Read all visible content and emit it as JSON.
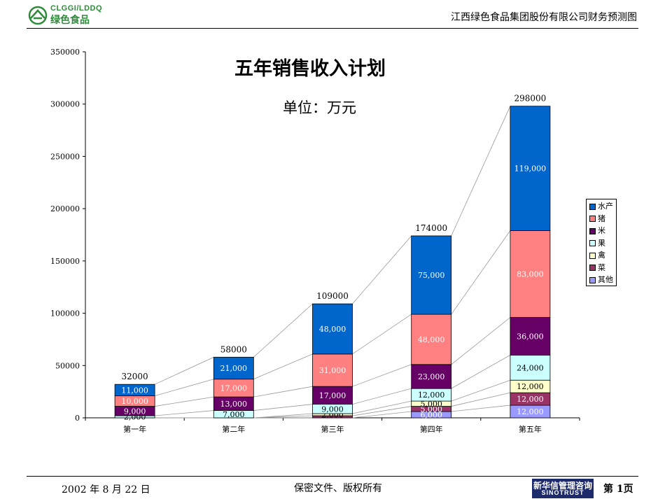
{
  "header": {
    "logo_text_en": "CLGGI/LDDQ",
    "logo_text_cn": "绿色食品",
    "company": "江西绿色食品集团股份有限公司财务预测图"
  },
  "footer": {
    "date": "2002 年 8 月 22 日",
    "confidential": "保密文件、版权所有",
    "consultant_cn": "新华信管理咨询",
    "consultant_en": "SINOTRUST",
    "page": "第 1页"
  },
  "chart_data": {
    "type": "bar",
    "stacked": true,
    "title": "五年销售收入计划",
    "subtitle": "单位：万元",
    "categories": [
      "第一年",
      "第二年",
      "第三年",
      "第四年",
      "第五年"
    ],
    "ylim": [
      0,
      350000
    ],
    "yticks": [
      "0",
      "50000",
      "100000",
      "150000",
      "200000",
      "250000",
      "300000",
      "350000"
    ],
    "totals": [
      "32000",
      "58000",
      "109000",
      "174000",
      "298000"
    ],
    "total_values": [
      32000,
      58000,
      109000,
      174000,
      298000
    ],
    "legend_position": "right",
    "series": [
      {
        "name": "其他",
        "color": "#9999ff",
        "values": [
          0,
          0,
          0,
          6000,
          12000
        ],
        "labels": [
          "",
          "",
          "",
          "6,000",
          "12,000"
        ]
      },
      {
        "name": "菜",
        "color": "#993366",
        "values": [
          0,
          0,
          2000,
          5000,
          12000
        ],
        "labels": [
          "",
          "",
          "",
          "5,000",
          "12,000"
        ]
      },
      {
        "name": "禽",
        "color": "#ffffcc",
        "values": [
          0,
          0,
          2000,
          5000,
          12000
        ],
        "labels": [
          "",
          "",
          "2,000",
          "5,000",
          "12,000"
        ]
      },
      {
        "name": "果",
        "color": "#ccffff",
        "values": [
          2000,
          7000,
          9000,
          12000,
          24000
        ],
        "labels": [
          "2,000",
          "7,000",
          "9,000",
          "12,000",
          "24,000"
        ]
      },
      {
        "name": "米",
        "color": "#660066",
        "values": [
          9000,
          13000,
          17000,
          23000,
          36000
        ],
        "labels": [
          "9,000",
          "13,000",
          "17,000",
          "23,000",
          "36,000"
        ]
      },
      {
        "name": "猪",
        "color": "#ff8080",
        "values": [
          10000,
          17000,
          31000,
          48000,
          83000
        ],
        "labels": [
          "10,000",
          "17,000",
          "31,000",
          "48,000",
          "83,000"
        ]
      },
      {
        "name": "水产",
        "color": "#0066cc",
        "values": [
          11000,
          21000,
          48000,
          75000,
          119000
        ],
        "labels": [
          "11,000",
          "21,000",
          "48,000",
          "75,000",
          "119,000"
        ]
      }
    ]
  }
}
